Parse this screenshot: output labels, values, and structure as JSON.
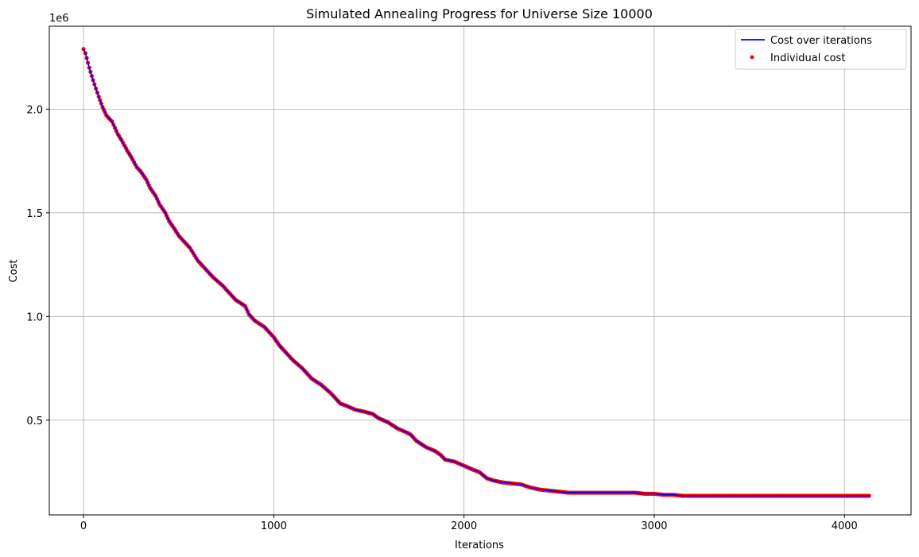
{
  "chart_data": {
    "type": "line",
    "title": "Simulated Annealing Progress for Universe Size 10000",
    "xlabel": "Iterations",
    "ylabel": "Cost",
    "y_offset_label": "1e6",
    "y_scale": 1000000,
    "xlim": [
      -180,
      4350
    ],
    "ylim": [
      0.043,
      2.4
    ],
    "xticks": [
      0,
      1000,
      2000,
      3000,
      4000
    ],
    "yticks": [
      0.5,
      1.0,
      1.5,
      2.0
    ],
    "xtick_labels": [
      "0",
      "1000",
      "2000",
      "3000",
      "4000"
    ],
    "ytick_labels": [
      "0.5",
      "1.0",
      "1.5",
      "2.0"
    ],
    "grid": true,
    "legend_position": "top-right",
    "series": [
      {
        "name": "Cost over iterations",
        "kind": "line",
        "color": "#0000ff",
        "x": [
          0,
          10,
          30,
          50,
          80,
          100,
          120,
          150,
          180,
          200,
          230,
          250,
          280,
          300,
          330,
          350,
          380,
          400,
          430,
          450,
          480,
          500,
          530,
          560,
          600,
          630,
          680,
          730,
          780,
          800,
          850,
          870,
          900,
          950,
          1000,
          1030,
          1050,
          1100,
          1150,
          1180,
          1200,
          1250,
          1300,
          1330,
          1350,
          1380,
          1430,
          1480,
          1520,
          1550,
          1600,
          1650,
          1700,
          1720,
          1750,
          1800,
          1850,
          1880,
          1900,
          1950,
          2000,
          2050,
          2080,
          2120,
          2150,
          2200,
          2250,
          2300,
          2350,
          2400,
          2450,
          2500,
          2550,
          2600,
          2700,
          2800,
          2900,
          2950,
          3000,
          3050,
          3100,
          3150,
          3200,
          3500,
          3800,
          4000,
          4130
        ],
        "y": [
          2.29,
          2.27,
          2.2,
          2.14,
          2.06,
          2.01,
          1.97,
          1.94,
          1.88,
          1.85,
          1.8,
          1.77,
          1.72,
          1.7,
          1.66,
          1.62,
          1.58,
          1.54,
          1.5,
          1.46,
          1.42,
          1.39,
          1.36,
          1.33,
          1.27,
          1.24,
          1.19,
          1.15,
          1.1,
          1.08,
          1.05,
          1.01,
          0.98,
          0.95,
          0.9,
          0.86,
          0.84,
          0.79,
          0.75,
          0.72,
          0.7,
          0.67,
          0.63,
          0.6,
          0.58,
          0.57,
          0.55,
          0.54,
          0.53,
          0.51,
          0.49,
          0.46,
          0.44,
          0.43,
          0.4,
          0.37,
          0.35,
          0.33,
          0.31,
          0.3,
          0.28,
          0.26,
          0.25,
          0.22,
          0.21,
          0.2,
          0.195,
          0.19,
          0.175,
          0.165,
          0.16,
          0.155,
          0.15,
          0.15,
          0.15,
          0.15,
          0.15,
          0.145,
          0.145,
          0.14,
          0.14,
          0.135,
          0.135,
          0.135,
          0.135,
          0.135,
          0.135
        ]
      },
      {
        "name": "Individual cost",
        "kind": "scatter",
        "color": "#ff0000"
      }
    ]
  }
}
